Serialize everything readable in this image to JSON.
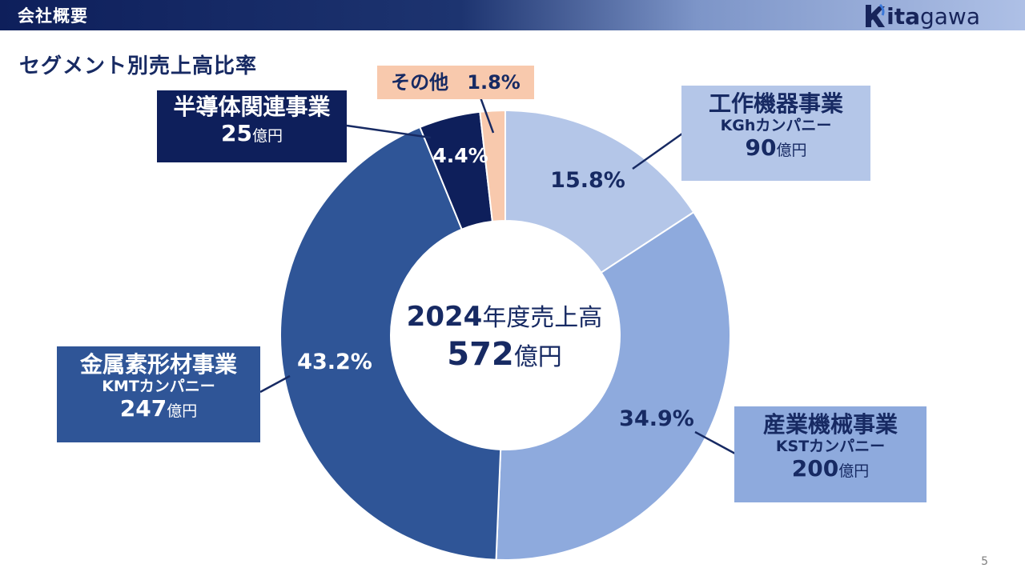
{
  "header": {
    "title": "会社概要"
  },
  "logo": {
    "text_k": "k",
    "text_ita": "ita",
    "text_gawa": "gawa"
  },
  "page": {
    "title": "セグメント別売上高比率",
    "number": "5"
  },
  "center": {
    "year": "2024",
    "label": "年度売上高",
    "total": "572",
    "unit": "億円"
  },
  "segments": [
    {
      "name": "工作機器事業",
      "company": "KGhカンパニー",
      "amount": "90",
      "unit": "億円",
      "percent_label": "15.8%",
      "color": "#b4c6e8",
      "box_color": "#b4c6e8",
      "text_color": "#172a63"
    },
    {
      "name": "産業機械事業",
      "company": "KSTカンパニー",
      "amount": "200",
      "unit": "億円",
      "percent_label": "34.9%",
      "color": "#8eaadd",
      "box_color": "#8eaadd",
      "text_color": "#172a63"
    },
    {
      "name": "金属素形材事業",
      "company": "KMTカンパニー",
      "amount": "247",
      "unit": "億円",
      "percent_label": "43.2%",
      "color": "#2f5597",
      "box_color": "#2f5597",
      "text_color": "#ffffff"
    },
    {
      "name": "半導体関連事業",
      "company": "",
      "amount": "25",
      "unit": "億円",
      "percent_label": "4.4%",
      "color": "#0e1f5b",
      "box_color": "#0e1f5b",
      "text_color": "#ffffff"
    },
    {
      "name": "その他",
      "company": "",
      "amount": "",
      "unit": "",
      "percent_label": "1.8%",
      "color": "#f8c9ad",
      "box_color": "#f8c9ad",
      "text_color": "#172a63"
    }
  ],
  "chart_data": {
    "type": "pie",
    "categories": [
      "工作機器事業",
      "産業機械事業",
      "金属素形材事業",
      "半導体関連事業",
      "その他"
    ],
    "values": [
      15.8,
      34.9,
      43.2,
      4.4,
      1.8
    ],
    "amounts": [
      90,
      200,
      247,
      25
    ],
    "title": "",
    "legend": "none"
  }
}
